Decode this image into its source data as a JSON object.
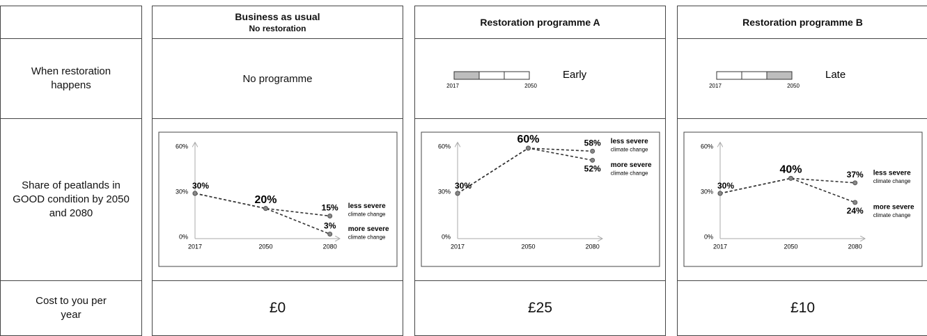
{
  "columns": [
    {
      "title": "Business as usual",
      "subtitle": "No restoration"
    },
    {
      "title": "Restoration programme A"
    },
    {
      "title": "Restoration programme B"
    }
  ],
  "row_labels": [
    "When restoration happens",
    "Share of peatlands in GOOD condition by 2050 and 2080",
    "Cost to you per year"
  ],
  "timing": [
    {
      "label": "No programme"
    },
    {
      "label": "Early",
      "timeline": {
        "start": "2017",
        "end": "2050",
        "shaded": 0
      }
    },
    {
      "label": "Late",
      "timeline": {
        "start": "2017",
        "end": "2050",
        "shaded": 2
      }
    }
  ],
  "costs": [
    "£0",
    "£25",
    "£10"
  ],
  "chart_data": [
    {
      "type": "line",
      "x": [
        2017,
        2050,
        2080
      ],
      "xlim": [
        2017,
        2084
      ],
      "xticks": [
        2017,
        2050,
        2080
      ],
      "ylim": [
        0,
        63
      ],
      "yticks": [
        {
          "value": 0,
          "label": "0%"
        },
        {
          "value": 30,
          "label": "30%"
        },
        {
          "value": 60,
          "label": "60%"
        }
      ],
      "series": [
        {
          "name": "less severe",
          "note": "climate change",
          "color": "#333333",
          "values": [
            30,
            20,
            15
          ],
          "value_labels": [
            "30%",
            "20%",
            "15%"
          ]
        },
        {
          "name": "more severe",
          "note": "climate change",
          "color": "#333333",
          "values": [
            30,
            20,
            3
          ],
          "value_labels": [
            null,
            null,
            "3%"
          ]
        }
      ]
    },
    {
      "type": "line",
      "x": [
        2017,
        2050,
        2080
      ],
      "xlim": [
        2017,
        2084
      ],
      "xticks": [
        2017,
        2050,
        2080
      ],
      "ylim": [
        0,
        63
      ],
      "yticks": [
        {
          "value": 0,
          "label": "0%"
        },
        {
          "value": 30,
          "label": "30%"
        },
        {
          "value": 60,
          "label": "60%"
        }
      ],
      "series": [
        {
          "name": "less severe",
          "note": "climate change",
          "color": "#333333",
          "values": [
            30,
            60,
            58
          ],
          "value_labels": [
            "30%",
            "60%",
            "58%"
          ]
        },
        {
          "name": "more severe",
          "note": "climate change",
          "color": "#333333",
          "values": [
            30,
            60,
            52
          ],
          "value_labels": [
            null,
            null,
            "52%"
          ]
        }
      ]
    },
    {
      "type": "line",
      "x": [
        2017,
        2050,
        2080
      ],
      "xlim": [
        2017,
        2084
      ],
      "xticks": [
        2017,
        2050,
        2080
      ],
      "ylim": [
        0,
        63
      ],
      "yticks": [
        {
          "value": 0,
          "label": "0%"
        },
        {
          "value": 30,
          "label": "30%"
        },
        {
          "value": 60,
          "label": "60%"
        }
      ],
      "series": [
        {
          "name": "less severe",
          "note": "climate change",
          "color": "#333333",
          "values": [
            30,
            40,
            37
          ],
          "value_labels": [
            "30%",
            "40%",
            "37%"
          ]
        },
        {
          "name": "more severe",
          "note": "climate change",
          "color": "#333333",
          "values": [
            30,
            40,
            24
          ],
          "value_labels": [
            null,
            null,
            "24%"
          ]
        }
      ]
    }
  ]
}
